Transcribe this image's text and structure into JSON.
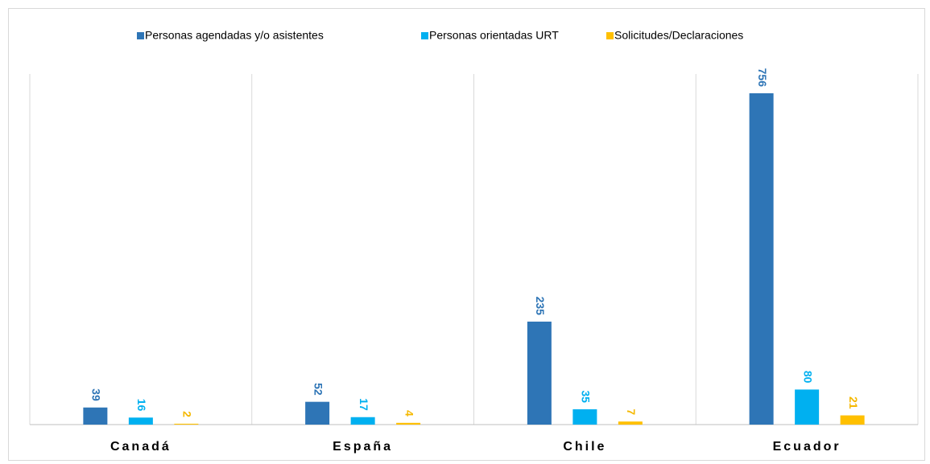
{
  "chart_data": {
    "type": "bar",
    "categories": [
      "Canadá",
      "España",
      "Chile",
      "Ecuador"
    ],
    "series": [
      {
        "name": "Personas agendadas y/o asistentes",
        "color": "#2e75b6",
        "values": [
          39,
          52,
          235,
          756
        ]
      },
      {
        "name": "Personas orientadas URT",
        "color": "#00b0f0",
        "values": [
          16,
          17,
          35,
          80
        ]
      },
      {
        "name": "Solicitudes/Declaraciones",
        "color": "#ffc000",
        "values": [
          2,
          4,
          7,
          21
        ]
      }
    ],
    "ylim": [
      0,
      800
    ],
    "legend": "top"
  }
}
